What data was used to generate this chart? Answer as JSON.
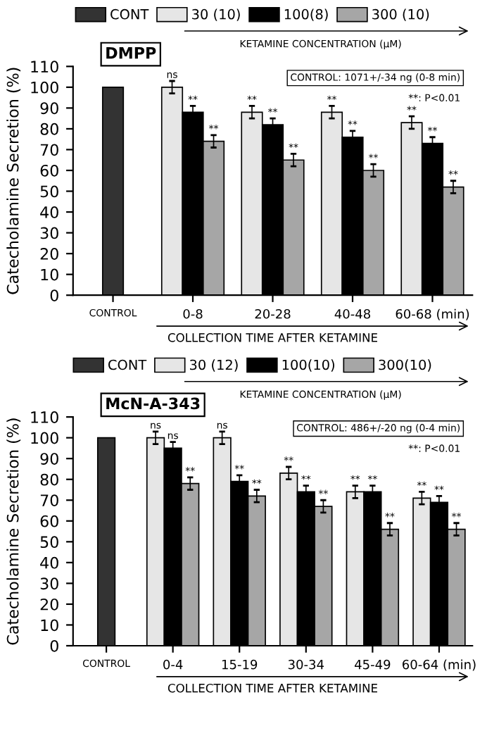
{
  "chart_data": [
    {
      "type": "bar",
      "title": "DMPP",
      "ylabel": "Catecholamine Secretion (%)",
      "xlabel": "COLLECTION TIME AFTER KETAMINE",
      "legend_title": "KETAMINE CONCENTRATION (μM)",
      "categories": [
        "CONTROL",
        "0-8",
        "20-28",
        "40-48",
        "60-68 (min)"
      ],
      "series": [
        {
          "name": "CONT",
          "color": "#333333",
          "values": [
            100,
            null,
            null,
            null,
            null
          ],
          "errors": [
            null,
            null,
            null,
            null,
            null
          ],
          "value_labels": [
            null,
            null,
            null,
            null,
            null
          ]
        },
        {
          "name": "30 (10)",
          "color": "#e6e6e6",
          "values": [
            null,
            100,
            88,
            88,
            83
          ],
          "errors": [
            null,
            3,
            3,
            3,
            3
          ],
          "value_labels": [
            null,
            "ns",
            "**",
            "**",
            "**"
          ]
        },
        {
          "name": "100(8)",
          "color": "#000000",
          "values": [
            null,
            88,
            82,
            76,
            73
          ],
          "errors": [
            null,
            3,
            3,
            3,
            3
          ],
          "value_labels": [
            null,
            "**",
            "**",
            "**",
            "**"
          ]
        },
        {
          "name": "300 (10)",
          "color": "#a6a6a6",
          "values": [
            null,
            74,
            65,
            60,
            52
          ],
          "errors": [
            null,
            3,
            3,
            3,
            3
          ],
          "value_labels": [
            null,
            "**",
            "**",
            "**",
            "**"
          ]
        }
      ],
      "ylim": [
        0,
        110
      ],
      "yticks": [
        0,
        10,
        20,
        30,
        40,
        50,
        60,
        70,
        80,
        90,
        100,
        110
      ],
      "annotations": [
        "CONTROL: 1071+/-34 ng (0-8 min)",
        "**: P<0.01"
      ],
      "legend": "top",
      "grid": false
    },
    {
      "type": "bar",
      "title": "McN-A-343",
      "ylabel": "Catecholamine Secretion (%)",
      "xlabel": "COLLECTION TIME AFTER KETAMINE",
      "legend_title": "KETAMINE CONCENTRATION (μM)",
      "categories": [
        "CONTROL",
        "0-4",
        "15-19",
        "30-34",
        "45-49",
        "60-64 (min)"
      ],
      "series": [
        {
          "name": "CONT",
          "color": "#333333",
          "values": [
            100,
            null,
            null,
            null,
            null,
            null
          ],
          "errors": [
            null,
            null,
            null,
            null,
            null,
            null
          ],
          "value_labels": [
            null,
            null,
            null,
            null,
            null,
            null
          ]
        },
        {
          "name": "30 (12)",
          "color": "#e6e6e6",
          "values": [
            null,
            100,
            100,
            83,
            74,
            71
          ],
          "errors": [
            null,
            3,
            3,
            3,
            3,
            3
          ],
          "value_labels": [
            null,
            "ns",
            "ns",
            "**",
            "**",
            "**"
          ]
        },
        {
          "name": "100(10)",
          "color": "#000000",
          "values": [
            null,
            95,
            79,
            74,
            74,
            69
          ],
          "errors": [
            null,
            3,
            3,
            3,
            3,
            3
          ],
          "value_labels": [
            null,
            "ns",
            "**",
            "**",
            "**",
            "**"
          ]
        },
        {
          "name": "300(10)",
          "color": "#a6a6a6",
          "values": [
            null,
            78,
            72,
            67,
            56,
            56
          ],
          "errors": [
            null,
            3,
            3,
            3,
            3,
            3
          ],
          "value_labels": [
            null,
            "**",
            "**",
            "**",
            "**",
            "**"
          ]
        }
      ],
      "ylim": [
        0,
        110
      ],
      "yticks": [
        0,
        10,
        20,
        30,
        40,
        50,
        60,
        70,
        80,
        90,
        100,
        110
      ],
      "annotations": [
        "CONTROL: 486+/-20 ng (0-4 min)",
        "**: P<0.01"
      ],
      "legend": "top",
      "grid": false
    }
  ]
}
